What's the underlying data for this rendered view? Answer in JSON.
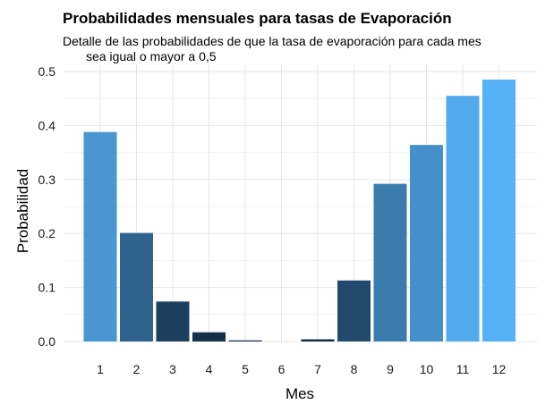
{
  "chart_data": {
    "type": "bar",
    "title": "Probabilidades mensuales para tasas de Evaporación",
    "subtitle_lines": [
      "Detalle de las probabilidades de que la tasa de evaporación para cada mes",
      "sea igual o mayor a 0,5"
    ],
    "xlabel": "Mes",
    "ylabel": "Probabilidad",
    "categories": [
      "1",
      "2",
      "3",
      "4",
      "5",
      "6",
      "7",
      "8",
      "9",
      "10",
      "11",
      "12"
    ],
    "values": [
      0.388,
      0.201,
      0.074,
      0.017,
      0.002,
      0.0,
      0.004,
      0.113,
      0.292,
      0.364,
      0.455,
      0.485
    ],
    "ylim": [
      0,
      0.5
    ],
    "yticks": [
      "0.0",
      "0.1",
      "0.2",
      "0.3",
      "0.4",
      "0.5"
    ],
    "grid": true,
    "legend": "none",
    "color_scale": {
      "low": "#132B43",
      "high": "#56B1F7"
    }
  }
}
